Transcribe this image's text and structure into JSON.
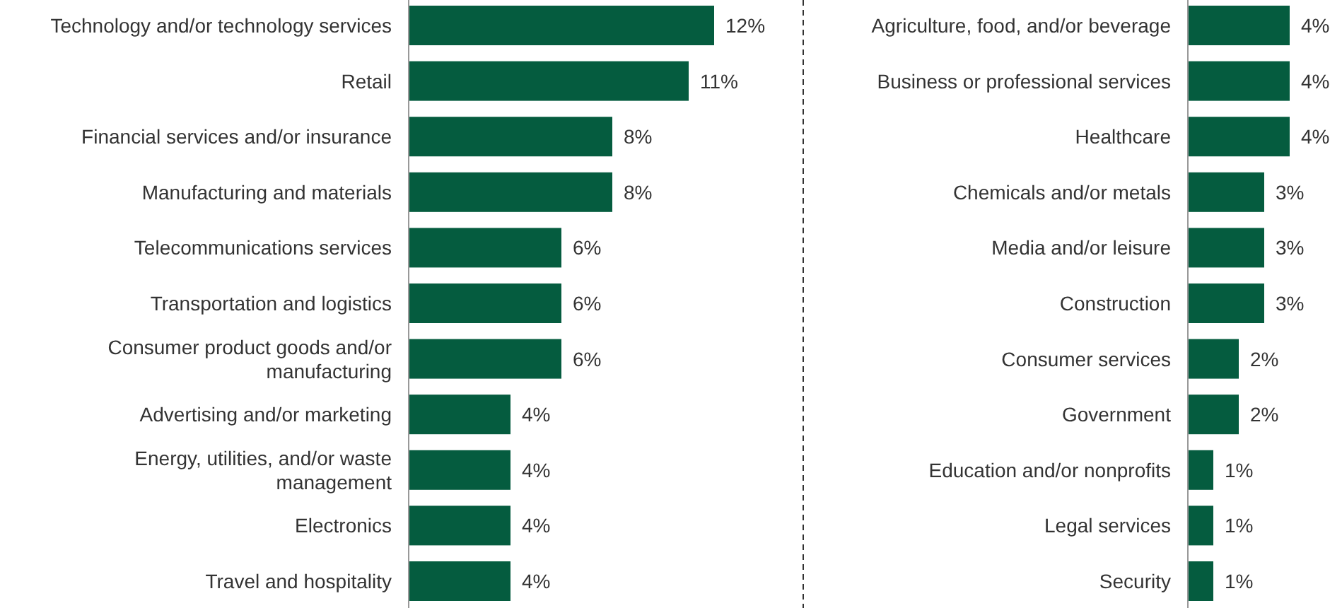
{
  "chart_data": [
    {
      "type": "bar",
      "orientation": "horizontal",
      "color": "#055c3f",
      "value_labels": [
        "12%",
        "11%",
        "8%",
        "8%",
        "6%",
        "6%",
        "6%",
        "4%",
        "4%",
        "4%",
        "4%"
      ],
      "categories": [
        "Technology and/or technology services",
        "Retail",
        "Financial services and/or insurance",
        "Manufacturing and materials",
        "Telecommunications services",
        "Transportation and logistics",
        "Consumer product goods and/or manufacturing",
        "Advertising and/or marketing",
        "Energy, utilities, and/or waste management",
        "Electronics",
        "Travel and hospitality"
      ],
      "values": [
        12,
        11,
        8,
        8,
        6,
        6,
        6,
        4,
        4,
        4,
        4
      ]
    },
    {
      "type": "bar",
      "orientation": "horizontal",
      "color": "#055c3f",
      "value_labels": [
        "4%",
        "4%",
        "4%",
        "3%",
        "3%",
        "3%",
        "2%",
        "2%",
        "1%",
        "1%",
        "1%"
      ],
      "categories": [
        "Agriculture, food, and/or beverage",
        "Business or professional services",
        "Healthcare",
        "Chemicals and/or metals",
        "Media and/or leisure",
        "Construction",
        "Consumer services",
        "Government",
        "Education and/or nonprofits",
        "Legal services",
        "Security"
      ],
      "values": [
        4,
        4,
        4,
        3,
        3,
        3,
        2,
        2,
        1,
        1,
        1
      ]
    }
  ]
}
